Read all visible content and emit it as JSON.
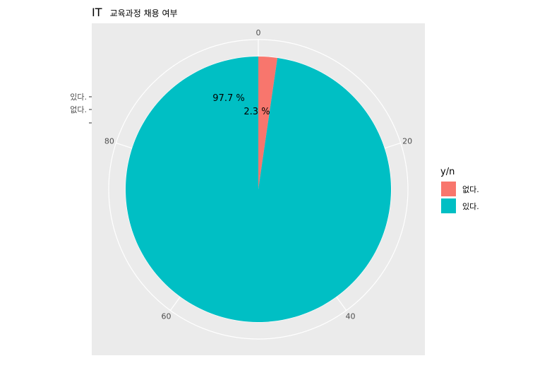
{
  "chart_data": {
    "type": "pie",
    "title": "IT",
    "subtitle": "교육과정 채용 여부",
    "categories": [
      "없다.",
      "있다."
    ],
    "values": [
      2.3,
      97.7
    ],
    "data_labels": [
      "2.3 %",
      "97.7 %"
    ],
    "colors": [
      "#F8766D",
      "#00BFC4"
    ],
    "angular_axis": {
      "ticks": [
        0,
        20,
        40,
        60,
        80
      ],
      "labels": [
        "0",
        "20",
        "40",
        "60",
        "80"
      ],
      "range": [
        0,
        100
      ]
    },
    "radial_axis_labels": [
      "있다.",
      "없다.",
      ""
    ],
    "legend": {
      "title": "y/n",
      "position": "right",
      "entries": [
        "없다.",
        "있다."
      ]
    },
    "panel_background": "#EBEBEB",
    "grid": true
  }
}
